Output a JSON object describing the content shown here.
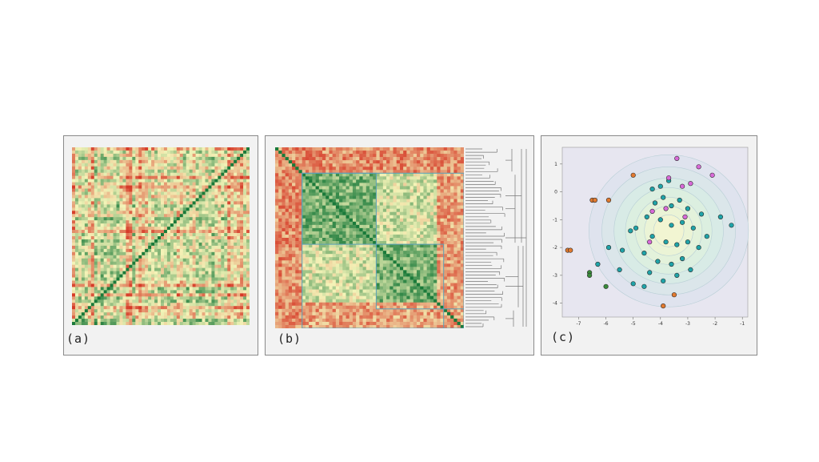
{
  "panels": {
    "a": {
      "label": "(a)"
    },
    "b": {
      "label": "(b)"
    },
    "c": {
      "label": "(c)"
    }
  },
  "colors": {
    "heat_low": "#1a7a3a",
    "heat_mid": "#f4f4b8",
    "heat_high": "#d63a28",
    "cluster_box": "#5aa0b8",
    "scatter_bg": "#e7e6f0",
    "teal": "#1fa3a8",
    "magenta": "#d86ad8",
    "orange": "#e27a2f",
    "green": "#3a8a3a"
  },
  "chart_data": [
    {
      "type": "heatmap",
      "panel": "a",
      "description_visible": "correlation matrix, unordered",
      "rows": 56,
      "cols": 56
    },
    {
      "type": "heatmap",
      "panel": "b",
      "description_visible": "clustered correlation matrix with dendrogram",
      "rows": 56,
      "cols": 56
    },
    {
      "type": "scatter",
      "panel": "c",
      "xticks": [
        "-7",
        "-6",
        "-5",
        "-4",
        "-3",
        "-2",
        "-1"
      ],
      "yticks": [
        "1",
        "0",
        "-1",
        "-2",
        "-3",
        "-4"
      ],
      "xlim": [
        -7.6,
        -0.8
      ],
      "ylim": [
        -4.5,
        1.6
      ],
      "series": [
        {
          "color": "teal",
          "points": [
            [
              -4.3,
              0.1
            ],
            [
              -4.0,
              0.2
            ],
            [
              -3.7,
              0.4
            ],
            [
              -3.9,
              -0.2
            ],
            [
              -4.2,
              -0.4
            ],
            [
              -3.6,
              -0.5
            ],
            [
              -3.3,
              -0.3
            ],
            [
              -3.0,
              -0.6
            ],
            [
              -2.5,
              -0.8
            ],
            [
              -1.8,
              -0.9
            ],
            [
              -1.4,
              -1.2
            ],
            [
              -4.5,
              -0.9
            ],
            [
              -4.0,
              -1.0
            ],
            [
              -3.6,
              -1.2
            ],
            [
              -3.2,
              -1.1
            ],
            [
              -2.8,
              -1.3
            ],
            [
              -2.3,
              -1.6
            ],
            [
              -4.9,
              -1.3
            ],
            [
              -5.1,
              -1.4
            ],
            [
              -4.3,
              -1.6
            ],
            [
              -3.8,
              -1.8
            ],
            [
              -3.4,
              -1.9
            ],
            [
              -3.0,
              -1.8
            ],
            [
              -2.6,
              -2.0
            ],
            [
              -4.6,
              -2.2
            ],
            [
              -4.1,
              -2.5
            ],
            [
              -3.6,
              -2.6
            ],
            [
              -3.2,
              -2.4
            ],
            [
              -2.9,
              -2.8
            ],
            [
              -4.4,
              -2.9
            ],
            [
              -3.9,
              -3.2
            ],
            [
              -5.4,
              -2.1
            ],
            [
              -5.9,
              -2.0
            ],
            [
              -5.5,
              -2.8
            ],
            [
              -5.0,
              -3.3
            ],
            [
              -6.3,
              -2.6
            ],
            [
              -4.6,
              -3.4
            ],
            [
              -3.4,
              -3.0
            ]
          ]
        },
        {
          "color": "magenta",
          "points": [
            [
              -3.4,
              1.2
            ],
            [
              -2.6,
              0.9
            ],
            [
              -3.7,
              0.5
            ],
            [
              -3.2,
              0.2
            ],
            [
              -2.9,
              0.3
            ],
            [
              -2.1,
              0.6
            ],
            [
              -3.8,
              -0.6
            ],
            [
              -4.3,
              -0.7
            ],
            [
              -4.4,
              -1.8
            ],
            [
              -3.1,
              -0.9
            ]
          ]
        },
        {
          "color": "orange",
          "points": [
            [
              -5.0,
              0.6
            ],
            [
              -6.5,
              -0.3
            ],
            [
              -6.4,
              -0.3
            ],
            [
              -5.9,
              -0.3
            ],
            [
              -7.4,
              -2.1
            ],
            [
              -7.3,
              -2.1
            ],
            [
              -3.5,
              -3.7
            ],
            [
              -3.9,
              -4.1
            ]
          ]
        },
        {
          "color": "green",
          "points": [
            [
              -6.6,
              -2.9
            ],
            [
              -6.6,
              -3.0
            ],
            [
              -6.0,
              -3.4
            ]
          ]
        }
      ]
    }
  ]
}
